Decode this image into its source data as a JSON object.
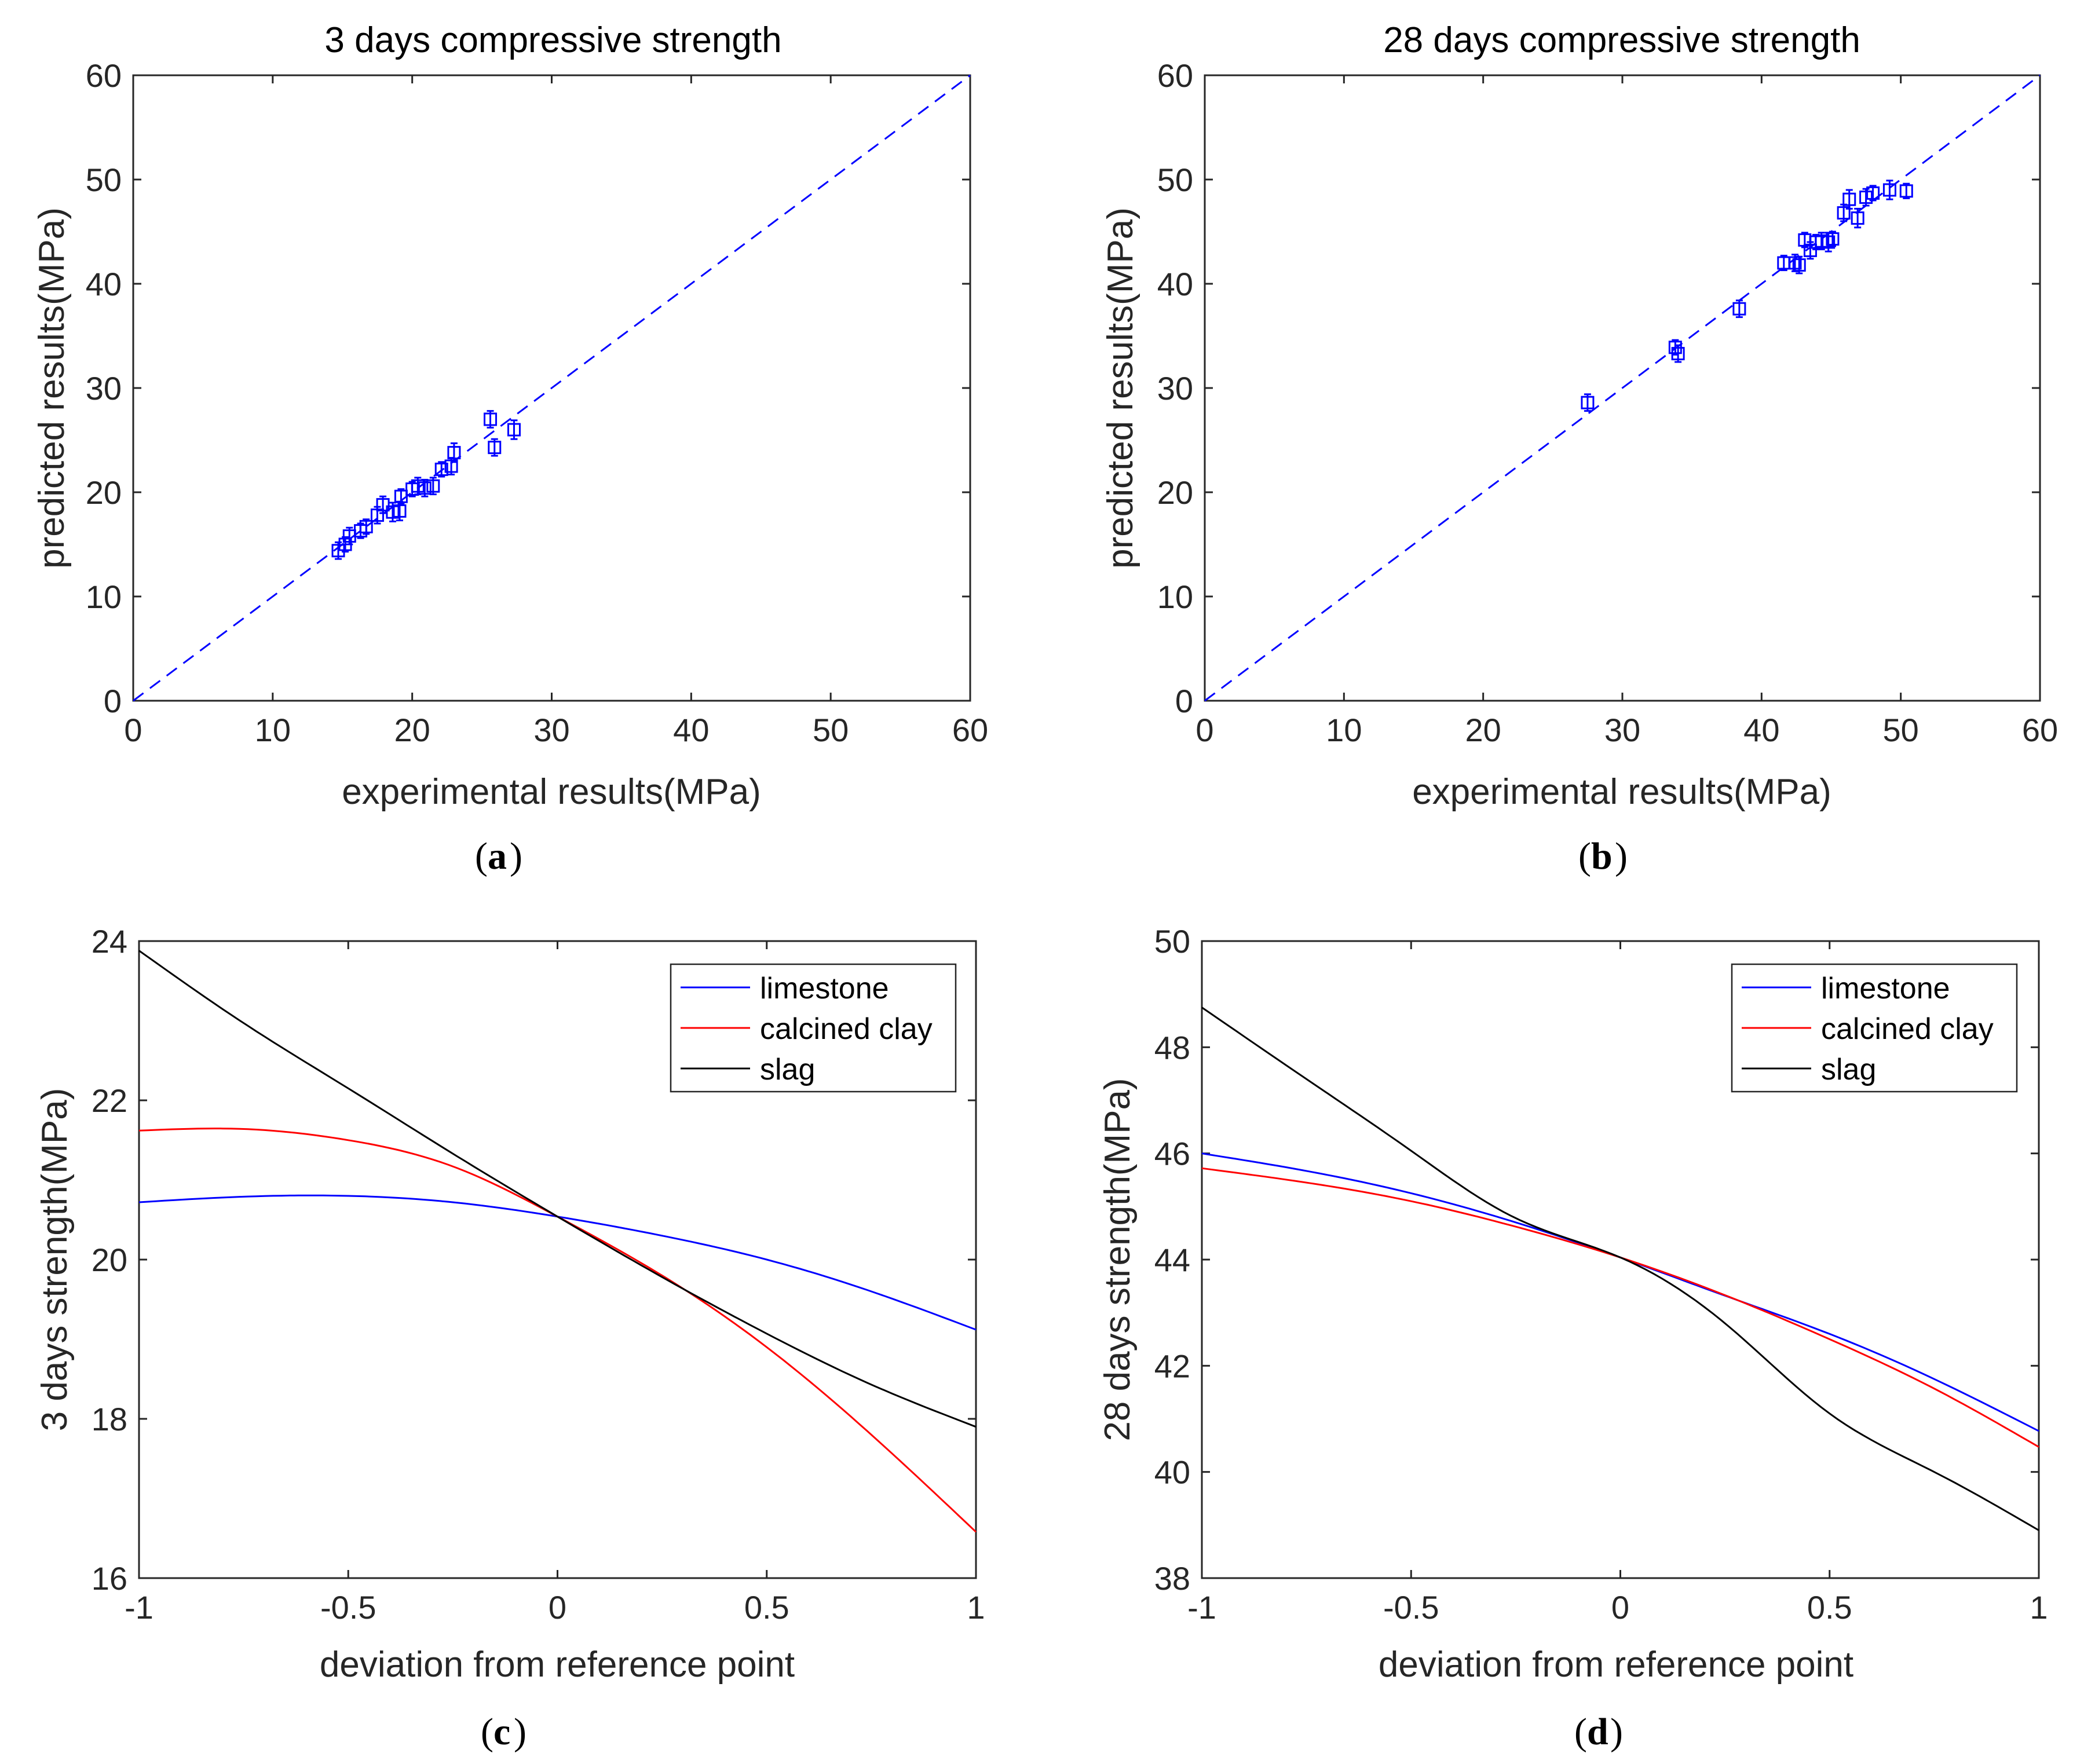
{
  "chart_data": [
    {
      "id": "a",
      "type": "scatter",
      "title": "3 days compressive strength",
      "xlabel": "experimental results(MPa)",
      "ylabel": "predicted results(MPa)",
      "caption_letter": "a",
      "xlim": [
        0,
        60
      ],
      "ylim": [
        0,
        60
      ],
      "xticks": [
        "0",
        "10",
        "20",
        "30",
        "40",
        "50",
        "60"
      ],
      "yticks": [
        "0",
        "10",
        "20",
        "30",
        "40",
        "50",
        "60"
      ],
      "xtick_values": [
        0,
        10,
        20,
        30,
        40,
        50,
        60
      ],
      "ytick_values": [
        0,
        10,
        20,
        30,
        40,
        50,
        60
      ],
      "reference_line": {
        "x": [
          0,
          60
        ],
        "y": [
          0,
          60
        ],
        "style": "dashed",
        "color": "#0000ff"
      },
      "marker_color": "#0000ff",
      "points": [
        {
          "x": 14.7,
          "y": 14.4,
          "err": 0.8
        },
        {
          "x": 15.2,
          "y": 15.0,
          "err": 0.7
        },
        {
          "x": 15.5,
          "y": 15.8,
          "err": 0.8
        },
        {
          "x": 16.3,
          "y": 16.3,
          "err": 0.7
        },
        {
          "x": 16.7,
          "y": 16.7,
          "err": 0.7
        },
        {
          "x": 17.5,
          "y": 17.8,
          "err": 0.8
        },
        {
          "x": 17.9,
          "y": 18.8,
          "err": 0.8
        },
        {
          "x": 18.6,
          "y": 18.1,
          "err": 0.9
        },
        {
          "x": 19.1,
          "y": 18.2,
          "err": 0.9
        },
        {
          "x": 19.2,
          "y": 19.6,
          "err": 0.7
        },
        {
          "x": 20.0,
          "y": 20.3,
          "err": 0.7
        },
        {
          "x": 20.4,
          "y": 20.6,
          "err": 0.8
        },
        {
          "x": 20.9,
          "y": 20.4,
          "err": 0.8
        },
        {
          "x": 21.5,
          "y": 20.6,
          "err": 0.8
        },
        {
          "x": 22.1,
          "y": 22.2,
          "err": 0.7
        },
        {
          "x": 22.8,
          "y": 22.5,
          "err": 0.8
        },
        {
          "x": 23.0,
          "y": 23.8,
          "err": 0.9
        },
        {
          "x": 25.6,
          "y": 27.0,
          "err": 0.8
        },
        {
          "x": 25.9,
          "y": 24.3,
          "err": 0.8
        },
        {
          "x": 27.3,
          "y": 26.0,
          "err": 0.9
        }
      ]
    },
    {
      "id": "b",
      "type": "scatter",
      "title": "28 days compressive strength",
      "xlabel": "experimental results(MPa)",
      "ylabel": "predicted results(MPa)",
      "caption_letter": "b",
      "xlim": [
        0,
        60
      ],
      "ylim": [
        0,
        60
      ],
      "xticks": [
        "0",
        "10",
        "20",
        "30",
        "40",
        "50",
        "60"
      ],
      "yticks": [
        "0",
        "10",
        "20",
        "30",
        "40",
        "50",
        "60"
      ],
      "xtick_values": [
        0,
        10,
        20,
        30,
        40,
        50,
        60
      ],
      "ytick_values": [
        0,
        10,
        20,
        30,
        40,
        50,
        60
      ],
      "reference_line": {
        "x": [
          0,
          60
        ],
        "y": [
          0,
          60
        ],
        "style": "dashed",
        "color": "#0000ff"
      },
      "marker_color": "#0000ff",
      "points": [
        {
          "x": 27.5,
          "y": 28.6,
          "err": 0.8
        },
        {
          "x": 33.8,
          "y": 33.9,
          "err": 0.7
        },
        {
          "x": 34.0,
          "y": 33.3,
          "err": 0.8
        },
        {
          "x": 38.4,
          "y": 37.6,
          "err": 0.8
        },
        {
          "x": 41.6,
          "y": 42.0,
          "err": 0.7
        },
        {
          "x": 42.4,
          "y": 42.0,
          "err": 0.8
        },
        {
          "x": 42.7,
          "y": 41.8,
          "err": 0.8
        },
        {
          "x": 43.1,
          "y": 44.2,
          "err": 0.7
        },
        {
          "x": 43.5,
          "y": 43.2,
          "err": 0.8
        },
        {
          "x": 43.9,
          "y": 44.0,
          "err": 0.7
        },
        {
          "x": 44.3,
          "y": 44.1,
          "err": 0.8
        },
        {
          "x": 44.8,
          "y": 44.0,
          "err": 0.9
        },
        {
          "x": 45.1,
          "y": 44.3,
          "err": 0.7
        },
        {
          "x": 45.9,
          "y": 46.8,
          "err": 0.8
        },
        {
          "x": 46.3,
          "y": 48.1,
          "err": 0.9
        },
        {
          "x": 46.9,
          "y": 46.3,
          "err": 0.9
        },
        {
          "x": 47.5,
          "y": 48.3,
          "err": 0.8
        },
        {
          "x": 48.0,
          "y": 48.7,
          "err": 0.7
        },
        {
          "x": 49.2,
          "y": 49.0,
          "err": 0.9
        },
        {
          "x": 50.4,
          "y": 48.9,
          "err": 0.7
        }
      ]
    },
    {
      "id": "c",
      "type": "line",
      "title": "",
      "xlabel": "deviation from reference point",
      "ylabel": "3 days strength(MPa)",
      "caption_letter": "c",
      "xlim": [
        -1,
        1
      ],
      "ylim": [
        16,
        24
      ],
      "xticks": [
        "-1",
        "-0.5",
        "0",
        "0.5",
        "1"
      ],
      "yticks": [
        "16",
        "18",
        "20",
        "22",
        "24"
      ],
      "xtick_values": [
        -1,
        -0.5,
        0,
        0.5,
        1
      ],
      "ytick_values": [
        16,
        18,
        20,
        22,
        24
      ],
      "legend_position": "top-right",
      "x": [
        -1,
        -0.75,
        -0.5,
        -0.25,
        0,
        0.25,
        0.5,
        0.75,
        1
      ],
      "series": [
        {
          "name": "limestone",
          "color": "#0000ff",
          "values": [
            20.72,
            20.79,
            20.8,
            20.72,
            20.54,
            20.3,
            20.0,
            19.6,
            19.12
          ]
        },
        {
          "name": "calcined clay",
          "color": "#ff0000",
          "values": [
            21.62,
            21.64,
            21.5,
            21.17,
            20.54,
            19.8,
            18.9,
            17.8,
            16.58
          ]
        },
        {
          "name": "slag",
          "color": "#000000",
          "values": [
            23.88,
            22.97,
            22.15,
            21.33,
            20.54,
            19.78,
            19.07,
            18.43,
            17.9
          ]
        }
      ]
    },
    {
      "id": "d",
      "type": "line",
      "title": "",
      "xlabel": "deviation from reference point",
      "ylabel": "28 days strength(MPa)",
      "caption_letter": "d",
      "xlim": [
        -1,
        1
      ],
      "ylim": [
        38,
        50
      ],
      "xticks": [
        "-1",
        "-0.5",
        "0",
        "0.5",
        "1"
      ],
      "yticks": [
        "38",
        "40",
        "42",
        "44",
        "46",
        "48",
        "50"
      ],
      "xtick_values": [
        -1,
        -0.5,
        0,
        0.5,
        1
      ],
      "ytick_values": [
        38,
        40,
        42,
        44,
        46,
        48,
        50
      ],
      "legend_position": "top-right",
      "x": [
        -1,
        -0.75,
        -0.5,
        -0.25,
        0,
        0.25,
        0.5,
        0.75,
        1
      ],
      "series": [
        {
          "name": "limestone",
          "color": "#0000ff",
          "values": [
            46.0,
            45.67,
            45.25,
            44.7,
            44.04,
            43.32,
            42.6,
            41.75,
            40.77
          ]
        },
        {
          "name": "calcined clay",
          "color": "#ff0000",
          "values": [
            45.72,
            45.45,
            45.1,
            44.62,
            44.04,
            43.33,
            42.5,
            41.57,
            40.47
          ]
        },
        {
          "name": "slag",
          "color": "#000000",
          "values": [
            48.75,
            47.4,
            46.05,
            44.78,
            44.04,
            42.8,
            41.1,
            40.0,
            38.9
          ]
        }
      ]
    }
  ]
}
